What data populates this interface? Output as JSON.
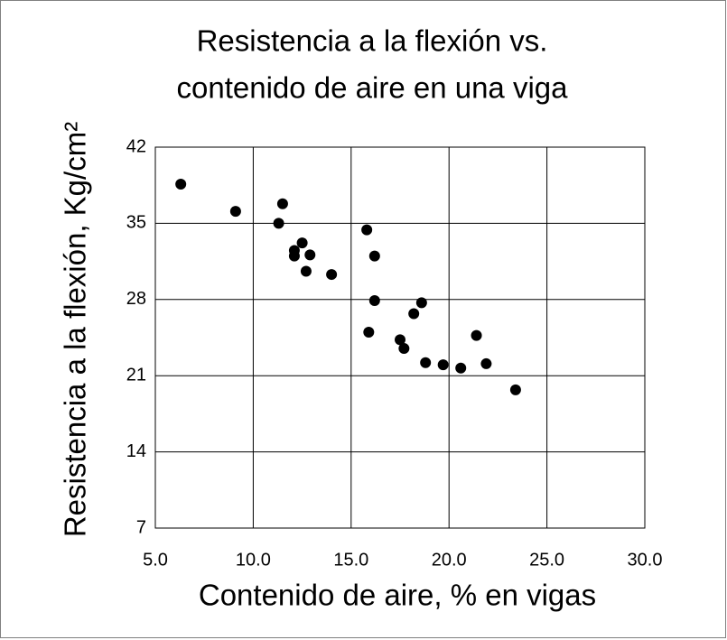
{
  "chart_data": {
    "type": "scatter",
    "title": [
      "Resistencia a la flexión vs.",
      "contenido de aire en una viga"
    ],
    "x_label": "Contenido de aire, % en vigas",
    "y_label": "Resistencia a la flexión, Kg/cm²",
    "color": "#000000",
    "grid": true,
    "x": [
      6.3,
      9.1,
      11.5,
      11.3,
      12.1,
      12.1,
      12.5,
      12.9,
      12.7,
      14.0,
      15.8,
      16.2,
      16.2,
      15.9,
      18.2,
      18.6,
      18.8,
      17.5,
      17.7,
      19.7,
      20.6,
      21.4,
      21.9,
      23.4
    ],
    "values": [
      38.6,
      36.1,
      36.8,
      35.0,
      32.5,
      32.0,
      33.2,
      32.1,
      30.6,
      30.3,
      34.4,
      32.0,
      27.9,
      25.0,
      26.7,
      27.7,
      22.2,
      24.3,
      23.5,
      22.0,
      21.7,
      24.7,
      22.1,
      19.7
    ],
    "xlim": [
      5,
      30
    ],
    "xticks": [
      {
        "value": 5,
        "label": "5.0"
      },
      {
        "value": 10,
        "label": "10.0"
      },
      {
        "value": 15,
        "label": "15.0"
      },
      {
        "value": 20,
        "label": "20.0"
      },
      {
        "value": 25,
        "label": "25.0"
      },
      {
        "value": 30,
        "label": "30.0"
      }
    ],
    "ylim": [
      7,
      42
    ],
    "yticks": [
      7,
      14,
      21,
      28,
      35,
      42
    ]
  }
}
